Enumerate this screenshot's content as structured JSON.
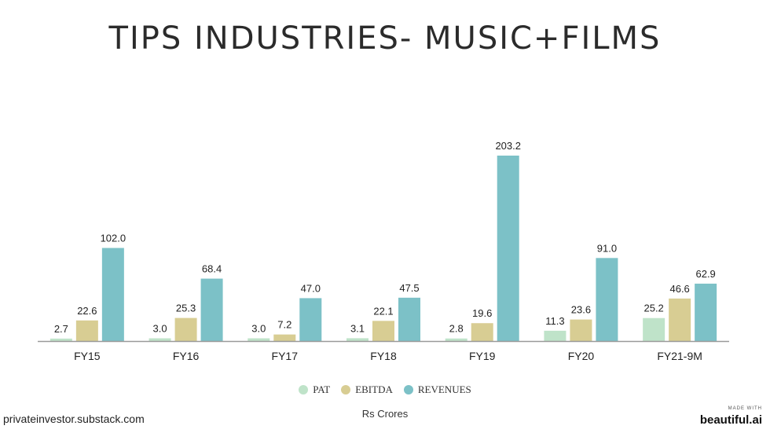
{
  "chart_data": {
    "type": "bar",
    "title": "TIPS INDUSTRIES- MUSIC+FILMS",
    "subtitle": "Rs Crores",
    "categories": [
      "FY15",
      "FY16",
      "FY17",
      "FY18",
      "FY19",
      "FY20",
      "FY21-9M"
    ],
    "series": [
      {
        "name": "PAT",
        "color": "#bfe3c9",
        "values": [
          2.7,
          3.0,
          3.0,
          3.1,
          2.8,
          11.3,
          25.2
        ],
        "labels": [
          "2.7",
          "3.0",
          "3.0",
          "3.1",
          "2.8",
          "11.3",
          "25.2"
        ]
      },
      {
        "name": "EBITDA",
        "color": "#d8cd93",
        "values": [
          22.6,
          25.3,
          7.2,
          22.1,
          19.6,
          23.6,
          46.6
        ],
        "labels": [
          "22.6",
          "25.3",
          "7.2",
          "22.1",
          "19.6",
          "23.6",
          "46.6"
        ]
      },
      {
        "name": "REVENUES",
        "color": "#7cc1c7",
        "values": [
          102.0,
          68.4,
          47.0,
          47.5,
          203.2,
          91.0,
          62.9
        ],
        "labels": [
          "102.0",
          "68.4",
          "47.0",
          "47.5",
          "203.2",
          "91.0",
          "62.9"
        ]
      }
    ],
    "ylim": [
      0,
      203.2
    ],
    "grid": false,
    "legend": "bottom-center"
  },
  "footer": {
    "source": "privateinvestor.substack.com",
    "brand_small": "MADE WITH",
    "brand_main": "beautiful.ai"
  }
}
